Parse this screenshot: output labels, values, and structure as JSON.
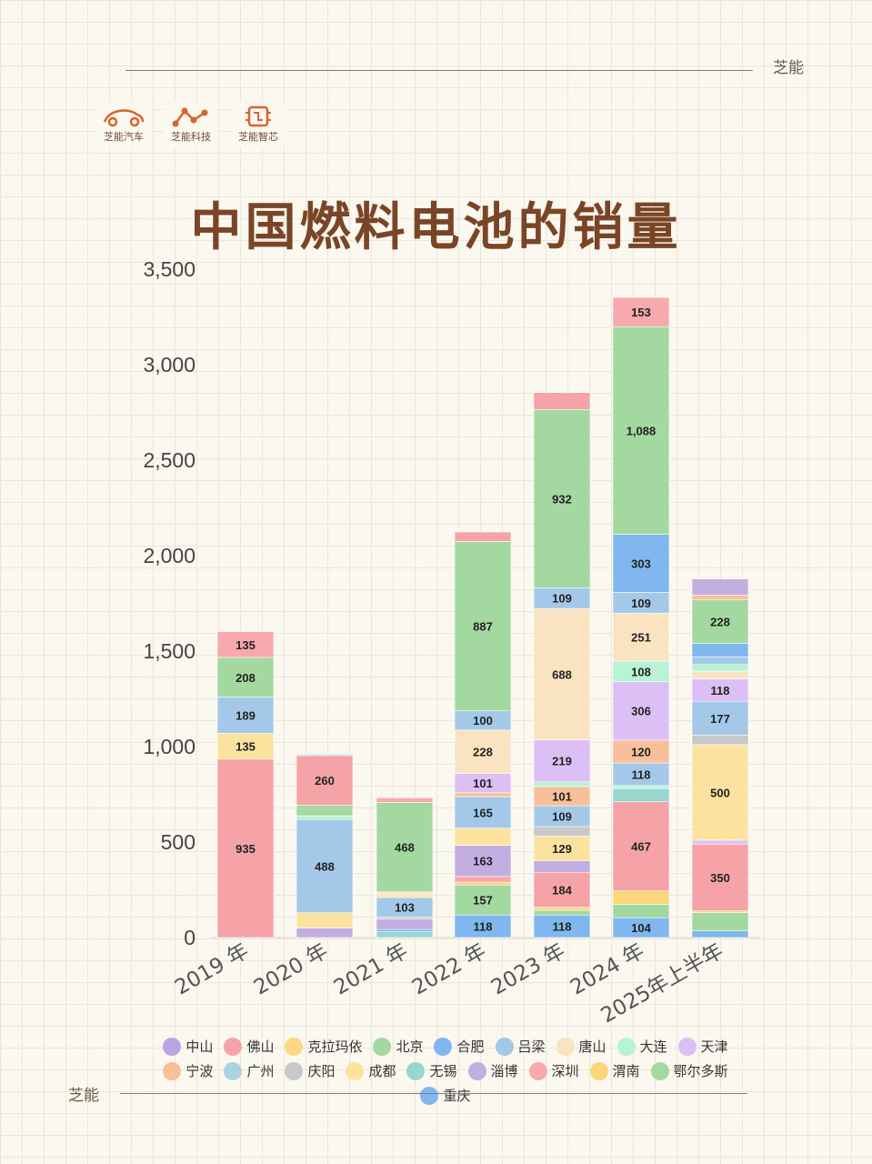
{
  "brand": {
    "name": "芝能"
  },
  "logos": [
    {
      "label": "芝能汽车",
      "icon": "car-logo-icon"
    },
    {
      "label": "芝能科技",
      "icon": "network-logo-icon"
    },
    {
      "label": "芝能智芯",
      "icon": "chip-logo-icon"
    }
  ],
  "chart_data": {
    "type": "bar",
    "stacked": true,
    "title": "中国燃料电池的销量",
    "categories": [
      "2019 年",
      "2020 年",
      "2021 年",
      "2022 年",
      "2023 年",
      "2024 年",
      "2025年上半年"
    ],
    "ylim": [
      0,
      3500
    ],
    "yticks": [
      "0",
      "500",
      "1,000",
      "1,500",
      "2,000",
      "2,500",
      "3,000",
      "3,500"
    ],
    "grid": false,
    "legend_position": "bottom",
    "series_colors": {
      "中山": "#b9a6e3",
      "佛山": "#f6a3a8",
      "克拉玛依": "#fbd786",
      "北京": "#a3d9a0",
      "合肥": "#7fb7ee",
      "吕梁": "#a4c9e8",
      "唐山": "#f9e3c0",
      "大连": "#b7f3d4",
      "天津": "#dcc0f5",
      "宁波": "#f7c09a",
      "广州": "#a9d3e3",
      "庆阳": "#c8c8c8",
      "成都": "#fbe39f",
      "无锡": "#97d7cf",
      "淄博": "#c2aee0",
      "深圳": "#f7a9ad",
      "渭南": "#fbd67a",
      "鄂尔多斯": "#a5d9a2",
      "重庆": "#7fb8ee"
    },
    "legend": [
      "中山",
      "佛山",
      "克拉玛依",
      "北京",
      "合肥",
      "吕梁",
      "唐山",
      "大连",
      "天津",
      "宁波",
      "广州",
      "庆阳",
      "成都",
      "无锡",
      "淄博",
      "深圳",
      "渭南",
      "鄂尔多斯",
      "重庆"
    ],
    "stacks": [
      [
        {
          "name": "佛山",
          "value": 935,
          "label": "935"
        },
        {
          "name": "成都",
          "value": 135,
          "label": "135"
        },
        {
          "name": "吕梁",
          "value": 189,
          "label": "189"
        },
        {
          "name": "北京",
          "value": 208,
          "label": "208"
        },
        {
          "name": "深圳",
          "value": 135,
          "label": "135"
        }
      ],
      [
        {
          "name": "淄博",
          "value": 50
        },
        {
          "name": "成都",
          "value": 80
        },
        {
          "name": "吕梁",
          "value": 488,
          "label": "488"
        },
        {
          "name": "大连",
          "value": 20
        },
        {
          "name": "北京",
          "value": 55
        },
        {
          "name": "佛山",
          "value": 260,
          "label": "260"
        },
        {
          "name": "广州",
          "value": 7
        }
      ],
      [
        {
          "name": "无锡",
          "value": 30
        },
        {
          "name": "重庆",
          "value": 12
        },
        {
          "name": "淄博",
          "value": 55
        },
        {
          "name": "庆阳",
          "value": 10
        },
        {
          "name": "吕梁",
          "value": 103,
          "label": "103"
        },
        {
          "name": "成都",
          "value": 15
        },
        {
          "name": "唐山",
          "value": 14
        },
        {
          "name": "北京",
          "value": 468,
          "label": "468"
        },
        {
          "name": "深圳",
          "value": 25
        }
      ],
      [
        {
          "name": "合肥",
          "value": 118,
          "label": "118"
        },
        {
          "name": "北京",
          "value": 157,
          "label": "157"
        },
        {
          "name": "渭南",
          "value": 15
        },
        {
          "name": "深圳",
          "value": 30
        },
        {
          "name": "淄博",
          "value": 163,
          "label": "163"
        },
        {
          "name": "成都",
          "value": 90
        },
        {
          "name": "吕梁",
          "value": 165,
          "label": "165"
        },
        {
          "name": "宁波",
          "value": 20
        },
        {
          "name": "天津",
          "value": 101,
          "label": "101"
        },
        {
          "name": "唐山",
          "value": 228,
          "label": "228"
        },
        {
          "name": "吕梁",
          "value": 100,
          "label": "100"
        },
        {
          "name": "北京",
          "value": 887,
          "label": "887"
        },
        {
          "name": "佛山",
          "value": 50
        }
      ],
      [
        {
          "name": "合肥",
          "value": 118,
          "label": "118"
        },
        {
          "name": "北京",
          "value": 25
        },
        {
          "name": "渭南",
          "value": 15
        },
        {
          "name": "佛山",
          "value": 184,
          "label": "184"
        },
        {
          "name": "淄博",
          "value": 60
        },
        {
          "name": "成都",
          "value": 129,
          "label": "129"
        },
        {
          "name": "庆阳",
          "value": 50
        },
        {
          "name": "吕梁",
          "value": 109,
          "label": "109"
        },
        {
          "name": "宁波",
          "value": 101,
          "label": "101"
        },
        {
          "name": "大连",
          "value": 25
        },
        {
          "name": "天津",
          "value": 219,
          "label": "219"
        },
        {
          "name": "唐山",
          "value": 688,
          "label": "688"
        },
        {
          "name": "吕梁",
          "value": 109,
          "label": "109"
        },
        {
          "name": "北京",
          "value": 932,
          "label": "932"
        },
        {
          "name": "佛山",
          "value": 90
        }
      ],
      [
        {
          "name": "合肥",
          "value": 104,
          "label": "104"
        },
        {
          "name": "北京",
          "value": 70
        },
        {
          "name": "渭南",
          "value": 70
        },
        {
          "name": "佛山",
          "value": 467,
          "label": "467"
        },
        {
          "name": "无锡",
          "value": 70
        },
        {
          "name": "大连",
          "value": 15
        },
        {
          "name": "吕梁",
          "value": 118,
          "label": "118"
        },
        {
          "name": "宁波",
          "value": 120,
          "label": "120"
        },
        {
          "name": "天津",
          "value": 306,
          "label": "306"
        },
        {
          "name": "大连",
          "value": 108,
          "label": "108"
        },
        {
          "name": "唐山",
          "value": 251,
          "label": "251"
        },
        {
          "name": "吕梁",
          "value": 109,
          "label": "109"
        },
        {
          "name": "合肥",
          "value": 303,
          "label": "303"
        },
        {
          "name": "北京",
          "value": 1088,
          "label": "1,088"
        },
        {
          "name": "深圳",
          "value": 153,
          "label": "153"
        }
      ],
      [
        {
          "name": "合肥",
          "value": 35
        },
        {
          "name": "北京",
          "value": 95
        },
        {
          "name": "渭南",
          "value": 10
        },
        {
          "name": "佛山",
          "value": 350,
          "label": "350"
        },
        {
          "name": "天津",
          "value": 20
        },
        {
          "name": "成都",
          "value": 500,
          "label": "500"
        },
        {
          "name": "庆阳",
          "value": 50
        },
        {
          "name": "吕梁",
          "value": 177,
          "label": "177"
        },
        {
          "name": "天津",
          "value": 118,
          "label": "118"
        },
        {
          "name": "唐山",
          "value": 40
        },
        {
          "name": "大连",
          "value": 35
        },
        {
          "name": "吕梁",
          "value": 40
        },
        {
          "name": "合肥",
          "value": 70
        },
        {
          "name": "北京",
          "value": 228,
          "label": "228"
        },
        {
          "name": "宁波",
          "value": 25
        },
        {
          "name": "淄博",
          "value": 85
        }
      ]
    ]
  }
}
